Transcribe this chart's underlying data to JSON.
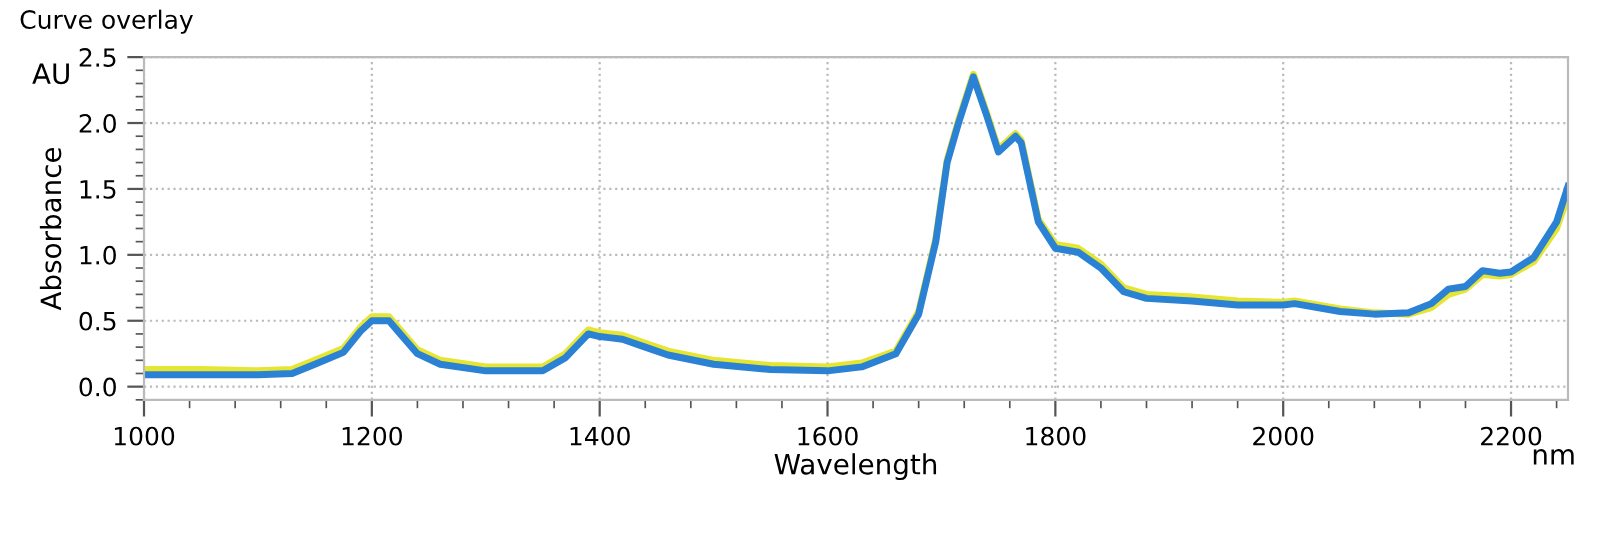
{
  "chart_data": {
    "type": "line",
    "title": "Curve overlay",
    "xlabel": "Wavelength",
    "ylabel": "Absorbance",
    "annotations": [
      "AU",
      "nm"
    ],
    "xlim": [
      1000,
      2250
    ],
    "xticks": [
      1000,
      1200,
      1400,
      1600,
      1800,
      2000,
      2200
    ],
    "ylim": [
      -0.1,
      2.5
    ],
    "yticks": [
      {
        "value": 0.0,
        "label": "0.0"
      },
      {
        "value": 0.5,
        "label": "0.5"
      },
      {
        "value": 1.0,
        "label": "1.0"
      },
      {
        "value": 1.5,
        "label": "1.5"
      },
      {
        "value": 2.0,
        "label": "2.0"
      },
      {
        "value": 2.5,
        "label": "2.5"
      }
    ],
    "grid": true,
    "marker": "none",
    "line_style": "solid",
    "x": [
      1000,
      1050,
      1100,
      1130,
      1150,
      1175,
      1190,
      1200,
      1215,
      1225,
      1240,
      1260,
      1300,
      1350,
      1370,
      1390,
      1400,
      1410,
      1420,
      1440,
      1460,
      1500,
      1550,
      1600,
      1630,
      1660,
      1680,
      1695,
      1705,
      1715,
      1728,
      1740,
      1750,
      1765,
      1770,
      1785,
      1800,
      1820,
      1840,
      1860,
      1880,
      1920,
      1960,
      2000,
      2010,
      2050,
      2080,
      2110,
      2130,
      2145,
      2160,
      2175,
      2190,
      2200,
      2220,
      2240,
      2250
    ],
    "series": [
      {
        "color": "#e6e632",
        "values": [
          0.13,
          0.13,
          0.12,
          0.13,
          0.2,
          0.29,
          0.45,
          0.53,
          0.53,
          0.43,
          0.28,
          0.2,
          0.15,
          0.15,
          0.25,
          0.43,
          0.41,
          0.4,
          0.39,
          0.33,
          0.27,
          0.2,
          0.16,
          0.15,
          0.18,
          0.27,
          0.57,
          1.12,
          1.72,
          2.02,
          2.37,
          2.07,
          1.8,
          1.92,
          1.87,
          1.27,
          1.08,
          1.05,
          0.93,
          0.75,
          0.7,
          0.68,
          0.65,
          0.64,
          0.65,
          0.59,
          0.56,
          0.55,
          0.6,
          0.7,
          0.74,
          0.85,
          0.84,
          0.85,
          0.95,
          1.2,
          1.45
        ]
      },
      {
        "color": "#2b82d4",
        "values": [
          0.09,
          0.09,
          0.09,
          0.1,
          0.17,
          0.26,
          0.42,
          0.5,
          0.5,
          0.4,
          0.25,
          0.17,
          0.12,
          0.12,
          0.22,
          0.4,
          0.38,
          0.37,
          0.36,
          0.3,
          0.24,
          0.17,
          0.13,
          0.12,
          0.15,
          0.25,
          0.55,
          1.1,
          1.7,
          2.0,
          2.35,
          2.05,
          1.78,
          1.9,
          1.85,
          1.25,
          1.05,
          1.02,
          0.9,
          0.72,
          0.67,
          0.65,
          0.62,
          0.62,
          0.63,
          0.57,
          0.55,
          0.56,
          0.63,
          0.74,
          0.76,
          0.88,
          0.86,
          0.87,
          0.98,
          1.25,
          1.52
        ]
      }
    ]
  }
}
